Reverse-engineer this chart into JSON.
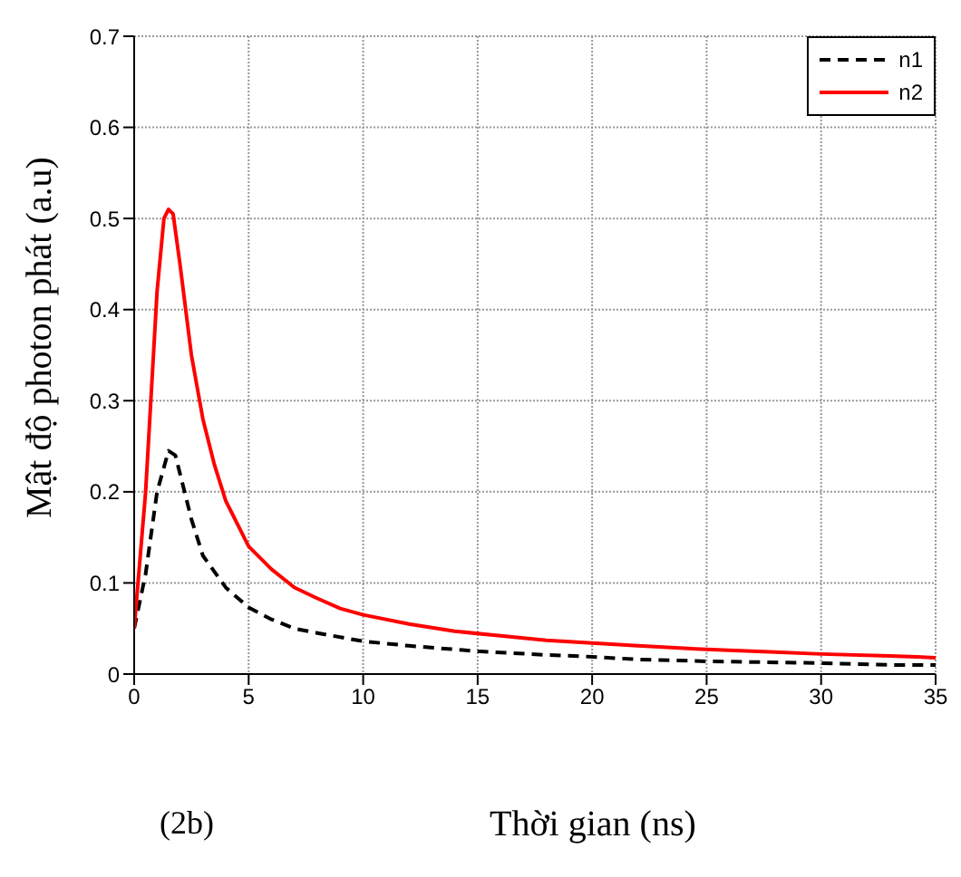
{
  "chart_data": {
    "type": "line",
    "xlabel": "Thời gian (ns)",
    "ylabel": "Mật độ photon phát (a.u)",
    "annotations": [
      "(2b)"
    ],
    "xlim": [
      0,
      35
    ],
    "xticks": [
      0,
      5,
      10,
      15,
      20,
      25,
      30,
      35
    ],
    "ylim": [
      0,
      0.7
    ],
    "yticks": [
      0,
      0.1,
      0.2,
      0.3,
      0.4,
      0.5,
      0.6,
      0.7
    ],
    "grid": true,
    "legend": "top right",
    "marker": "none",
    "series": [
      {
        "name": "n1",
        "color": "#000000",
        "line_style": "dashed",
        "x": [
          0,
          0.5,
          1,
          1.5,
          1.8,
          2.2,
          2.5,
          3,
          4,
          5,
          6,
          7,
          8,
          10,
          12,
          15,
          18,
          20,
          22,
          25,
          30,
          33,
          35
        ],
        "values": [
          0.05,
          0.11,
          0.2,
          0.245,
          0.24,
          0.2,
          0.17,
          0.13,
          0.095,
          0.073,
          0.06,
          0.05,
          0.045,
          0.036,
          0.031,
          0.025,
          0.021,
          0.019,
          0.016,
          0.014,
          0.012,
          0.01,
          0.01
        ]
      },
      {
        "name": "n2",
        "color": "#ff0000",
        "line_style": "solid",
        "x": [
          0,
          0.5,
          1,
          1.3,
          1.5,
          1.7,
          2,
          2.5,
          3,
          3.5,
          4,
          5,
          6,
          7,
          8,
          9,
          10,
          12,
          14,
          16,
          18,
          20,
          22,
          25,
          28,
          30,
          33,
          35
        ],
        "values": [
          0.05,
          0.2,
          0.42,
          0.5,
          0.51,
          0.505,
          0.45,
          0.35,
          0.28,
          0.23,
          0.19,
          0.14,
          0.115,
          0.095,
          0.083,
          0.072,
          0.065,
          0.055,
          0.047,
          0.042,
          0.037,
          0.034,
          0.031,
          0.027,
          0.024,
          0.022,
          0.02,
          0.018
        ]
      }
    ]
  }
}
